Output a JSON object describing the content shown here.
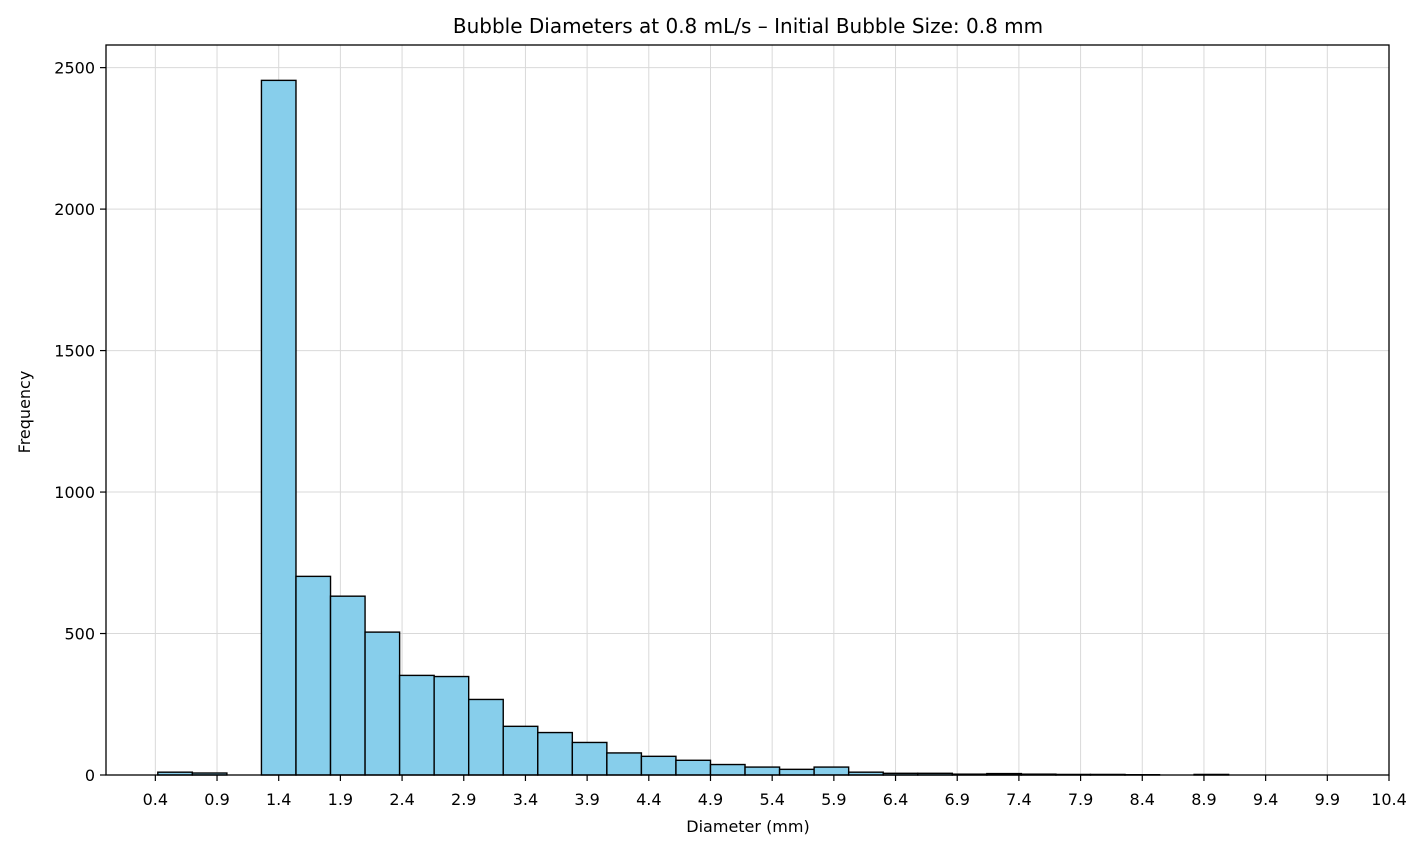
{
  "chart_data": {
    "type": "bar",
    "title": "Bubble Diameters at 0.8 mL/s – Initial Bubble Size: 0.8 mm",
    "xlabel": "Diameter (mm)",
    "ylabel": "Frequency",
    "xlim": [
      0.0,
      10.4
    ],
    "ylim": [
      0,
      2580
    ],
    "grid": true,
    "colors": {
      "bar_fill": "#87ceeb",
      "bar_edge": "#000000",
      "grid": "#d9d9d9"
    },
    "x_ticks": [
      0.4,
      0.9,
      1.4,
      1.9,
      2.4,
      2.9,
      3.4,
      3.9,
      4.4,
      4.9,
      5.4,
      5.9,
      6.4,
      6.9,
      7.4,
      7.9,
      8.4,
      8.9,
      9.4,
      9.9,
      10.4
    ],
    "x_tick_labels": [
      "0.4",
      "0.9",
      "1.4",
      "1.9",
      "2.4",
      "2.9",
      "3.4",
      "3.9",
      "4.4",
      "4.9",
      "5.4",
      "5.9",
      "6.4",
      "6.9",
      "7.4",
      "7.9",
      "8.4",
      "8.9",
      "9.4",
      "9.9",
      "10.4"
    ],
    "y_ticks": [
      0,
      500,
      1000,
      1500,
      2000,
      2500
    ],
    "y_tick_labels": [
      "0",
      "500",
      "1000",
      "1500",
      "2000",
      "2500"
    ],
    "bins": [
      {
        "x0": 0.42,
        "x1": 0.7,
        "value": 10
      },
      {
        "x0": 0.7,
        "x1": 0.98,
        "value": 7
      },
      {
        "x0": 0.98,
        "x1": 1.26,
        "value": 0
      },
      {
        "x0": 1.26,
        "x1": 1.54,
        "value": 2455
      },
      {
        "x0": 1.54,
        "x1": 1.82,
        "value": 702
      },
      {
        "x0": 1.82,
        "x1": 2.1,
        "value": 632
      },
      {
        "x0": 2.1,
        "x1": 2.38,
        "value": 505
      },
      {
        "x0": 2.38,
        "x1": 2.66,
        "value": 352
      },
      {
        "x0": 2.66,
        "x1": 2.94,
        "value": 348
      },
      {
        "x0": 2.94,
        "x1": 3.22,
        "value": 267
      },
      {
        "x0": 3.22,
        "x1": 3.5,
        "value": 172
      },
      {
        "x0": 3.5,
        "x1": 3.78,
        "value": 150
      },
      {
        "x0": 3.78,
        "x1": 4.06,
        "value": 115
      },
      {
        "x0": 4.06,
        "x1": 4.34,
        "value": 78
      },
      {
        "x0": 4.34,
        "x1": 4.62,
        "value": 66
      },
      {
        "x0": 4.62,
        "x1": 4.9,
        "value": 52
      },
      {
        "x0": 4.9,
        "x1": 5.18,
        "value": 37
      },
      {
        "x0": 5.18,
        "x1": 5.46,
        "value": 28
      },
      {
        "x0": 5.46,
        "x1": 5.74,
        "value": 20
      },
      {
        "x0": 5.74,
        "x1": 6.02,
        "value": 28
      },
      {
        "x0": 6.02,
        "x1": 6.3,
        "value": 10
      },
      {
        "x0": 6.3,
        "x1": 6.58,
        "value": 6
      },
      {
        "x0": 6.58,
        "x1": 6.86,
        "value": 6
      },
      {
        "x0": 6.86,
        "x1": 7.14,
        "value": 3
      },
      {
        "x0": 7.14,
        "x1": 7.42,
        "value": 5
      },
      {
        "x0": 7.42,
        "x1": 7.7,
        "value": 3
      },
      {
        "x0": 7.7,
        "x1": 7.98,
        "value": 2
      },
      {
        "x0": 7.98,
        "x1": 8.26,
        "value": 2
      },
      {
        "x0": 8.26,
        "x1": 8.54,
        "value": 1
      },
      {
        "x0": 8.54,
        "x1": 8.82,
        "value": 0
      },
      {
        "x0": 8.82,
        "x1": 9.1,
        "value": 2
      }
    ]
  }
}
